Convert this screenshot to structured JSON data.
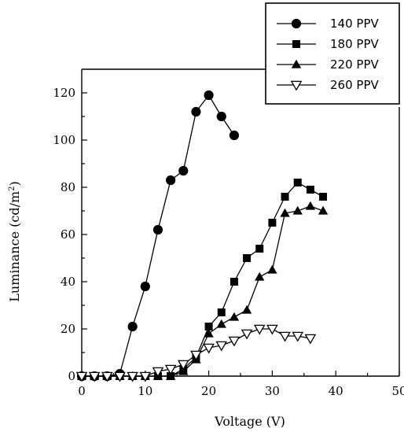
{
  "chart_data": {
    "type": "line",
    "xlabel": "Voltage (V)",
    "ylabel_main": "Luminance (cd/m",
    "ylabel_sup": "2",
    "ylabel_end": ")",
    "xlim": [
      0,
      50
    ],
    "ylim": [
      0,
      130
    ],
    "xticks": [
      0,
      10,
      20,
      30,
      40,
      50
    ],
    "yticks": [
      0,
      20,
      40,
      60,
      80,
      100,
      120
    ],
    "legend_position": "top-right",
    "series": [
      {
        "name": "140 PPV",
        "marker": "circle-filled",
        "color": "#000000",
        "points": [
          [
            0,
            0
          ],
          [
            2,
            0
          ],
          [
            4,
            0
          ],
          [
            6,
            1
          ],
          [
            8,
            21
          ],
          [
            10,
            38
          ],
          [
            12,
            62
          ],
          [
            14,
            83
          ],
          [
            16,
            87
          ],
          [
            18,
            112
          ],
          [
            20,
            119
          ],
          [
            22,
            110
          ],
          [
            24,
            102
          ]
        ]
      },
      {
        "name": "180 PPV",
        "marker": "square-filled",
        "color": "#000000",
        "points": [
          [
            0,
            0
          ],
          [
            2,
            0
          ],
          [
            4,
            0
          ],
          [
            6,
            0
          ],
          [
            8,
            0
          ],
          [
            10,
            0
          ],
          [
            12,
            0
          ],
          [
            14,
            0
          ],
          [
            16,
            3
          ],
          [
            18,
            8
          ],
          [
            20,
            21
          ],
          [
            22,
            27
          ],
          [
            24,
            40
          ],
          [
            26,
            50
          ],
          [
            28,
            54
          ],
          [
            30,
            65
          ],
          [
            32,
            76
          ],
          [
            34,
            82
          ],
          [
            36,
            79
          ],
          [
            38,
            76
          ]
        ]
      },
      {
        "name": "220 PPV",
        "marker": "triangle-up-filled",
        "color": "#000000",
        "points": [
          [
            0,
            0
          ],
          [
            2,
            0
          ],
          [
            4,
            0
          ],
          [
            6,
            0
          ],
          [
            8,
            0
          ],
          [
            10,
            0
          ],
          [
            12,
            0
          ],
          [
            14,
            0
          ],
          [
            16,
            2
          ],
          [
            18,
            7
          ],
          [
            20,
            18
          ],
          [
            22,
            22
          ],
          [
            24,
            25
          ],
          [
            26,
            28
          ],
          [
            28,
            42
          ],
          [
            30,
            45
          ],
          [
            32,
            69
          ],
          [
            34,
            70
          ],
          [
            36,
            72
          ],
          [
            38,
            70
          ]
        ]
      },
      {
        "name": "260 PPV",
        "marker": "triangle-down-open",
        "color": "#000000",
        "points": [
          [
            0,
            0
          ],
          [
            2,
            0
          ],
          [
            4,
            0
          ],
          [
            6,
            0
          ],
          [
            8,
            0
          ],
          [
            10,
            0
          ],
          [
            12,
            2
          ],
          [
            14,
            3
          ],
          [
            16,
            5
          ],
          [
            18,
            9
          ],
          [
            20,
            12
          ],
          [
            22,
            13
          ],
          [
            24,
            15
          ],
          [
            26,
            18
          ],
          [
            28,
            20
          ],
          [
            30,
            20
          ],
          [
            32,
            17
          ],
          [
            34,
            17
          ],
          [
            36,
            16
          ]
        ]
      }
    ]
  }
}
